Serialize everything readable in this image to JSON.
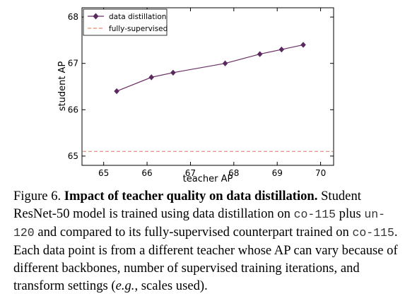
{
  "chart_data": {
    "type": "line",
    "xlabel": "teacher AP",
    "ylabel": "student AP",
    "xlim": [
      64.5,
      70.3
    ],
    "ylim": [
      64.8,
      68.2
    ],
    "xticks": [
      65,
      66,
      67,
      68,
      69,
      70
    ],
    "yticks": [
      65,
      66,
      67,
      68
    ],
    "grid": false,
    "legend_position": "top-left",
    "series": [
      {
        "name": "data distillation",
        "style": "line-with-diamond-markers",
        "color": "#6a2e62",
        "marker_color": "#5a2a5e",
        "x": [
          65.3,
          66.1,
          66.6,
          67.8,
          68.6,
          69.1,
          69.6
        ],
        "y": [
          66.4,
          66.7,
          66.8,
          67.0,
          67.2,
          67.3,
          67.4
        ]
      },
      {
        "name": "fully-supervised",
        "style": "dashed-horizontal",
        "color": "#e8886e",
        "y": 65.1
      }
    ]
  },
  "caption": {
    "figure_label": "Figure 6.",
    "bold_title": "Impact of teacher quality on data distillation.",
    "t1": " Student ResNet-50 model is trained using data distillation on ",
    "code1": "co-115",
    "t2": " plus ",
    "code2": "un-120",
    "t3": " and compared to its fully-supervised counterpart trained on ",
    "code3": "co-115",
    "t4": ". Each data point is from a different teacher whose AP can vary because of different backbones, number of supervised training iterations, and transform settings (",
    "eg": "e.g.",
    "t5": ", scales used)."
  }
}
